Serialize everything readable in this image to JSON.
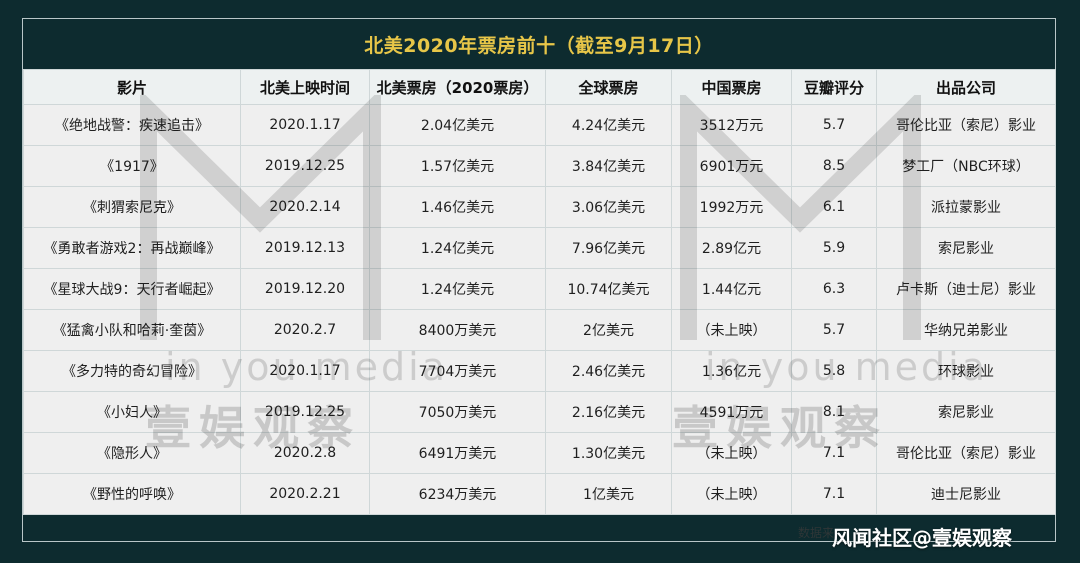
{
  "page": {
    "title": "北美2020年票房前十（截至9月17日）"
  },
  "chart_data": {
    "type": "table",
    "title": "北美2020年票房前十（截至9月17日）",
    "columns": [
      "影片",
      "北美上映时间",
      "北美票房（2020票房）",
      "全球票房",
      "中国票房",
      "豆瓣评分",
      "出品公司"
    ],
    "rows": [
      {
        "film": "《绝地战警：疾速追击》",
        "release_na": "2020.1.17",
        "na_box": "2.04亿美元",
        "global_box": "4.24亿美元",
        "china_box": "3512万元",
        "douban": "5.7",
        "company": "哥伦比亚（索尼）影业"
      },
      {
        "film": "《1917》",
        "release_na": "2019.12.25",
        "na_box": "1.57亿美元",
        "global_box": "3.84亿美元",
        "china_box": "6901万元",
        "douban": "8.5",
        "company": "梦工厂（NBC环球）"
      },
      {
        "film": "《刺猬索尼克》",
        "release_na": "2020.2.14",
        "na_box": "1.46亿美元",
        "global_box": "3.06亿美元",
        "china_box": "1992万元",
        "douban": "6.1",
        "company": "派拉蒙影业"
      },
      {
        "film": "《勇敢者游戏2：再战巅峰》",
        "release_na": "2019.12.13",
        "na_box": "1.24亿美元",
        "global_box": "7.96亿美元",
        "china_box": "2.89亿元",
        "douban": "5.9",
        "company": "索尼影业"
      },
      {
        "film": "《星球大战9：天行者崛起》",
        "release_na": "2019.12.20",
        "na_box": "1.24亿美元",
        "global_box": "10.74亿美元",
        "china_box": "1.44亿元",
        "douban": "6.3",
        "company": "卢卡斯（迪士尼）影业"
      },
      {
        "film": "《猛禽小队和哈莉·奎茵》",
        "release_na": "2020.2.7",
        "na_box": "8400万美元",
        "global_box": "2亿美元",
        "china_box": "（未上映）",
        "douban": "5.7",
        "company": "华纳兄弟影业"
      },
      {
        "film": "《多力特的奇幻冒险》",
        "release_na": "2020.1.17",
        "na_box": "7704万美元",
        "global_box": "2.46亿美元",
        "china_box": "1.36亿元",
        "douban": "5.8",
        "company": "环球影业"
      },
      {
        "film": "《小妇人》",
        "release_na": "2019.12.25",
        "na_box": "7050万美元",
        "global_box": "2.16亿美元",
        "china_box": "4591万元",
        "douban": "8.1",
        "company": "索尼影业"
      },
      {
        "film": "《隐形人》",
        "release_na": "2020.2.8",
        "na_box": "6491万美元",
        "global_box": "1.30亿美元",
        "china_box": "（未上映）",
        "douban": "7.1",
        "company": "哥伦比亚（索尼）影业"
      },
      {
        "film": "《野性的呼唤》",
        "release_na": "2020.2.21",
        "na_box": "6234万美元",
        "global_box": "1亿美元",
        "china_box": "（未上映）",
        "douban": "7.1",
        "company": "迪士尼影业"
      }
    ]
  },
  "watermark": {
    "sub_text": "in you media",
    "main_text": "壹娱观察"
  },
  "footer": {
    "source_text": "数据来",
    "brand": "风闻社区@壹娱观察"
  },
  "colors": {
    "background": "#0d2b2f",
    "title": "#e7c648",
    "header_bg": "#edf1f1",
    "cell_bg": "#efefef",
    "border": "#cfd7d8"
  }
}
